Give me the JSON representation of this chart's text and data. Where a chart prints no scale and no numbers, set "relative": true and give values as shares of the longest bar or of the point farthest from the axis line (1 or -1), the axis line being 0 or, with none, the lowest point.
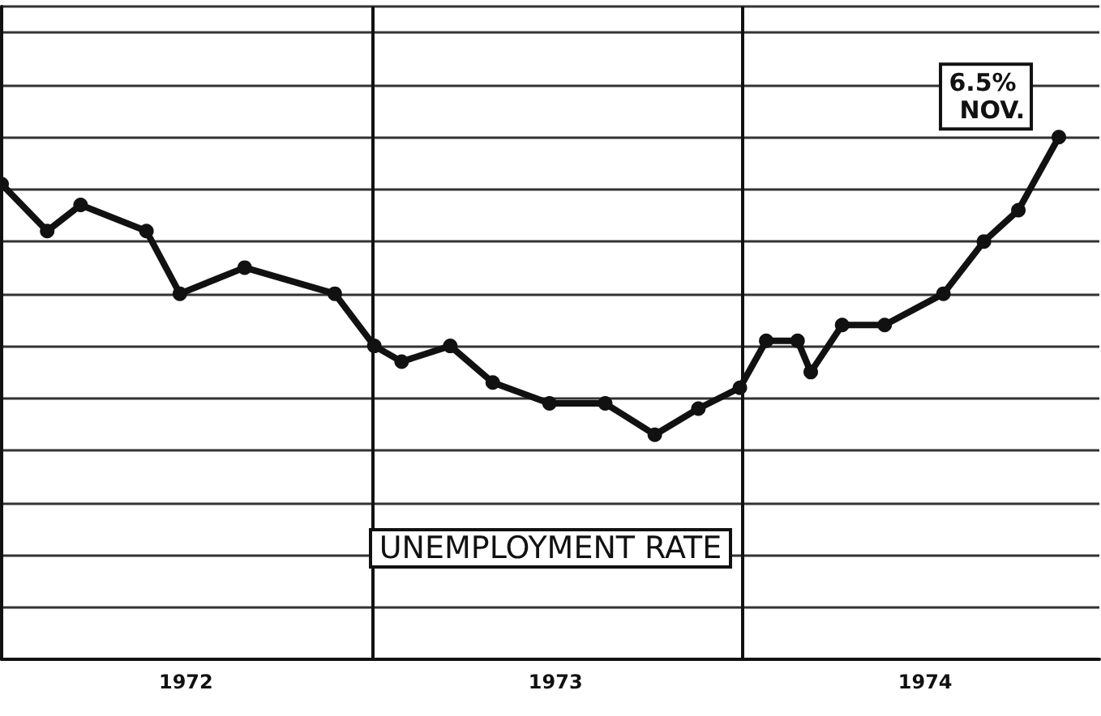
{
  "chart_data": {
    "type": "line",
    "title": "UNEMPLOYMENT RATE",
    "relative": true,
    "grid": true,
    "marker": "circle",
    "line_style": "solid",
    "x": [
      "1972-01-01",
      "1972-02-15",
      "1972-03-19",
      "1972-05-23",
      "1972-06-25",
      "1972-08-28",
      "1972-11-25",
      "1973-01-03",
      "1973-01-30",
      "1973-03-19",
      "1973-04-30",
      "1973-06-25",
      "1973-08-19",
      "1973-10-07",
      "1973-11-19",
      "1973-12-30",
      "1974-01-25",
      "1974-02-25",
      "1974-03-10",
      "1974-04-10",
      "1974-05-22",
      "1974-07-19",
      "1974-08-28",
      "1974-10-01",
      "1974-11-10"
    ],
    "series": [
      {
        "color": "#111111",
        "values": [
          0.91,
          0.82,
          0.87,
          0.82,
          0.7,
          0.75,
          0.7,
          0.6,
          0.57,
          0.6,
          0.53,
          0.49,
          0.49,
          0.43,
          0.48,
          0.52,
          0.61,
          0.61,
          0.55,
          0.64,
          0.64,
          0.7,
          0.8,
          0.86,
          1
        ]
      }
    ],
    "xlim": [
      "1972-01-01",
      "1974-12-20"
    ],
    "xticks": [
      {
        "value": "1973-01-01",
        "label": null
      },
      {
        "value": "1974-01-01",
        "label": null
      },
      {
        "value": "1972-07-01",
        "label": "1972"
      },
      {
        "value": "1973-07-01",
        "label": "1973"
      },
      {
        "value": "1974-07-01",
        "label": "1974"
      }
    ],
    "annotations": [
      {
        "text": "6.5% NOV.",
        "x": "1974-11-10",
        "y": 1
      }
    ]
  }
}
